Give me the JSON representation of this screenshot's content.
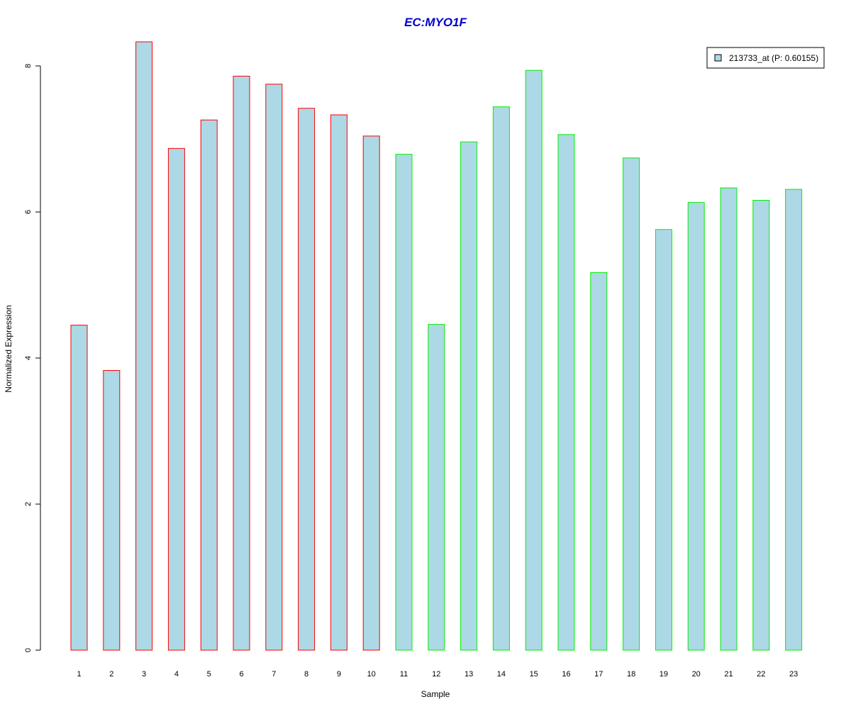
{
  "chart_data": {
    "type": "bar",
    "title": "EC:MYO1F",
    "xlabel": "Sample",
    "ylabel": "Normalized Expression",
    "categories": [
      "1",
      "2",
      "3",
      "4",
      "5",
      "6",
      "7",
      "8",
      "9",
      "10",
      "11",
      "12",
      "13",
      "14",
      "15",
      "16",
      "17",
      "18",
      "19",
      "20",
      "21",
      "22",
      "23"
    ],
    "series": [
      {
        "name": "213733_at (P: 0.60155)",
        "values": [
          4.45,
          3.83,
          8.33,
          6.87,
          7.26,
          7.86,
          7.75,
          7.42,
          7.33,
          7.04,
          6.79,
          4.46,
          6.96,
          7.44,
          7.94,
          7.06,
          5.17,
          6.74,
          5.76,
          6.13,
          6.33,
          6.16,
          6.31
        ],
        "group_labels": [
          "1",
          "1",
          "1",
          "1",
          "1",
          "1",
          "1",
          "1",
          "1",
          "1",
          "2",
          "2",
          "2",
          "2",
          "2",
          "2",
          "2",
          "2",
          "2",
          "2",
          "2",
          "2",
          "2"
        ]
      }
    ],
    "yticks": [
      0,
      2,
      4,
      6,
      8
    ],
    "ylim": [
      0,
      8.33
    ],
    "grid": false,
    "legend_position": "top-right",
    "colors": {
      "bar_fill": "#add8e6",
      "group_1_border": "#ff0000",
      "group_2_border": "#00ee00",
      "title": "#0000cc"
    }
  }
}
